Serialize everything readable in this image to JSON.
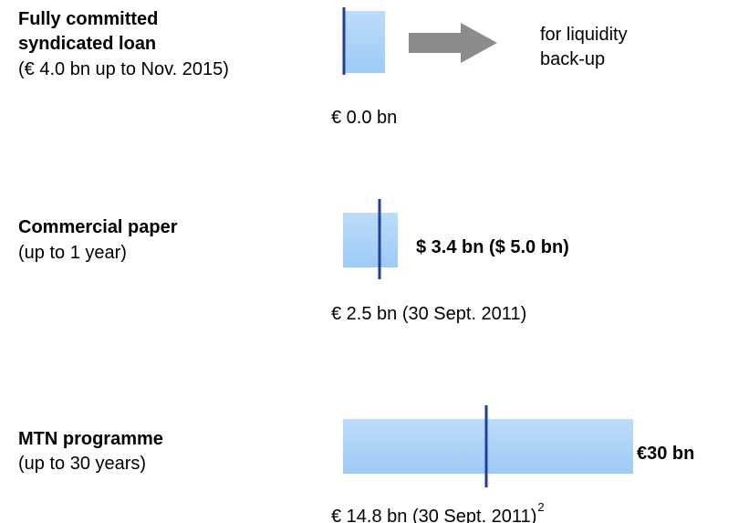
{
  "instruments": [
    {
      "title": [
        "Fully committed",
        "syndicated loan"
      ],
      "subtitle": "(€ 4.0 bn up to Nov. 2015)",
      "utilization": "€ 0.0 bn",
      "note": [
        "for liquidity",
        "back-up"
      ]
    },
    {
      "title": [
        "Commercial paper"
      ],
      "subtitle": "(up to 1 year)",
      "amount": "$ 3.4 bn ($ 5.0 bn)",
      "utilization": "€ 2.5 bn (30 Sept. 2011)"
    },
    {
      "title": [
        "MTN programme"
      ],
      "subtitle": "(up to 30 years)",
      "amount": "€30 bn",
      "utilization": "€ 14.8 bn (30 Sept. 2011)",
      "footnote": "2"
    }
  ]
}
